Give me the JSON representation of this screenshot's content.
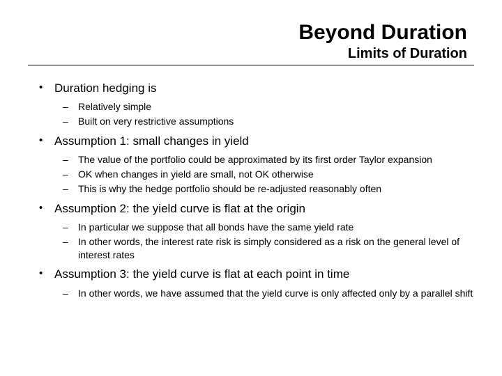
{
  "header": {
    "title": "Beyond Duration",
    "subtitle": "Limits of Duration"
  },
  "bullets": [
    {
      "text": "Duration hedging is",
      "subs": [
        "Relatively simple",
        "Built on very restrictive assumptions"
      ]
    },
    {
      "text": "Assumption 1: small changes in yield",
      "subs": [
        "The value of the portfolio could be approximated by its first order Taylor expansion",
        "OK when changes in yield are small, not OK otherwise",
        "This is why the hedge portfolio should be re-adjusted reasonably often"
      ]
    },
    {
      "text": "Assumption 2: the yield curve is flat at the origin",
      "subs": [
        "In particular we suppose that all bonds have the same yield rate",
        "In other words, the interest rate risk is simply considered as a risk on the general level of interest rates"
      ]
    },
    {
      "text": "Assumption 3: the yield curve is flat at each point in time",
      "subs": [
        "In other words, we have assumed that the yield curve is only affected only by a parallel shift"
      ]
    }
  ]
}
